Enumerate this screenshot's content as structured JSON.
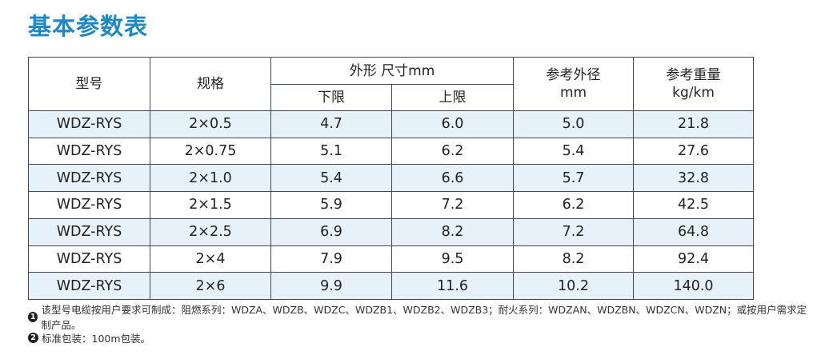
{
  "title": "基本参数表",
  "table": {
    "headers": {
      "model": "型号",
      "spec": "规格",
      "outer_size": "外形 尺寸mm",
      "lower": "下限",
      "upper": "上限",
      "ref_od_line1": "参考外径",
      "ref_od_line2": "mm",
      "ref_weight_line1": "参考重量",
      "ref_weight_line2": "kg/km"
    },
    "rows": [
      {
        "model": "WDZ-RYS",
        "spec": "2×0.5",
        "lower": "4.7",
        "upper": "6.0",
        "od": "5.0",
        "weight": "21.8"
      },
      {
        "model": "WDZ-RYS",
        "spec": "2×0.75",
        "lower": "5.1",
        "upper": "6.2",
        "od": "5.4",
        "weight": "27.6"
      },
      {
        "model": "WDZ-RYS",
        "spec": "2×1.0",
        "lower": "5.4",
        "upper": "6.6",
        "od": "5.7",
        "weight": "32.8"
      },
      {
        "model": "WDZ-RYS",
        "spec": "2×1.5",
        "lower": "5.9",
        "upper": "7.2",
        "od": "6.2",
        "weight": "42.5"
      },
      {
        "model": "WDZ-RYS",
        "spec": "2×2.5",
        "lower": "6.9",
        "upper": "8.2",
        "od": "7.2",
        "weight": "64.8"
      },
      {
        "model": "WDZ-RYS",
        "spec": "2×4",
        "lower": "7.9",
        "upper": "9.5",
        "od": "8.2",
        "weight": "92.4"
      },
      {
        "model": "WDZ-RYS",
        "spec": "2×6",
        "lower": "9.9",
        "upper": "11.6",
        "od": "10.2",
        "weight": "140.0"
      }
    ]
  },
  "notes": [
    {
      "marker": "1",
      "text": "该型号电缆按用户要求可制成：阻燃系列：WDZA、WDZB、WDZC、WDZB1、WDZB2、WDZB3；耐火系列：WDZAN、WDZBN、WDZCN、WDZN；或按用户需求定制产品。"
    },
    {
      "marker": "2",
      "text": "标准包装：100m包装。"
    }
  ]
}
